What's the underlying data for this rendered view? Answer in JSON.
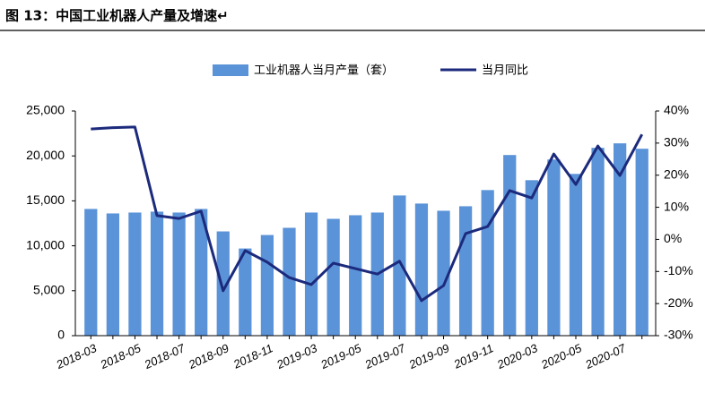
{
  "chart_data": {
    "type": "bar",
    "title": "图 13：中国工业机器人产量及增速↵",
    "categories": [
      "2018-03",
      null,
      "2018-05",
      null,
      "2018-07",
      null,
      "2018-09",
      null,
      "2018-11",
      null,
      "2019-03",
      null,
      "2019-05",
      null,
      "2019-07",
      null,
      "2019-09",
      null,
      "2019-11",
      null,
      "2020-03",
      null,
      "2020-05",
      null,
      "2020-07",
      null
    ],
    "series": [
      {
        "name": "工业机器人当月产量（套）",
        "type": "bar",
        "color": "#5b93d8",
        "values": [
          14100,
          13600,
          13700,
          13800,
          13700,
          14100,
          11600,
          9700,
          11200,
          12000,
          13700,
          13000,
          13400,
          13700,
          15600,
          14700,
          13900,
          14400,
          16200,
          20100,
          17300,
          19600,
          18000,
          20900,
          21400,
          20800
        ]
      },
      {
        "name": "当月同比",
        "type": "line",
        "axis": "y2",
        "color": "#1c2a7c",
        "values": [
          34.4,
          34.8,
          35,
          7.4,
          6.5,
          8.8,
          -16,
          -3.5,
          -7.1,
          -11.9,
          -14.1,
          -7.4,
          -9.1,
          -10.8,
          -6.8,
          -19.1,
          -14.4,
          1.8,
          4,
          15.2,
          12.9,
          26.6,
          17.1,
          29.1,
          19.9,
          32.7
        ]
      }
    ],
    "ylim": [
      0,
      25000
    ],
    "yticks": [
      {
        "value": 0,
        "label": "0"
      },
      {
        "value": 5000,
        "label": "5,000"
      },
      {
        "value": 10000,
        "label": "10,000"
      },
      {
        "value": 15000,
        "label": "15,000"
      },
      {
        "value": 20000,
        "label": "20,000"
      },
      {
        "value": 25000,
        "label": "25,000"
      }
    ],
    "y2lim": [
      -30,
      40
    ],
    "y2ticks": [
      {
        "value": -30,
        "label": "-30%"
      },
      {
        "value": -20,
        "label": "-20%"
      },
      {
        "value": -10,
        "label": "-10%"
      },
      {
        "value": 0,
        "label": "0%"
      },
      {
        "value": 10,
        "label": "10%"
      },
      {
        "value": 20,
        "label": "20%"
      },
      {
        "value": 30,
        "label": "30%"
      },
      {
        "value": 40,
        "label": "40%"
      }
    ],
    "legend": "top"
  }
}
